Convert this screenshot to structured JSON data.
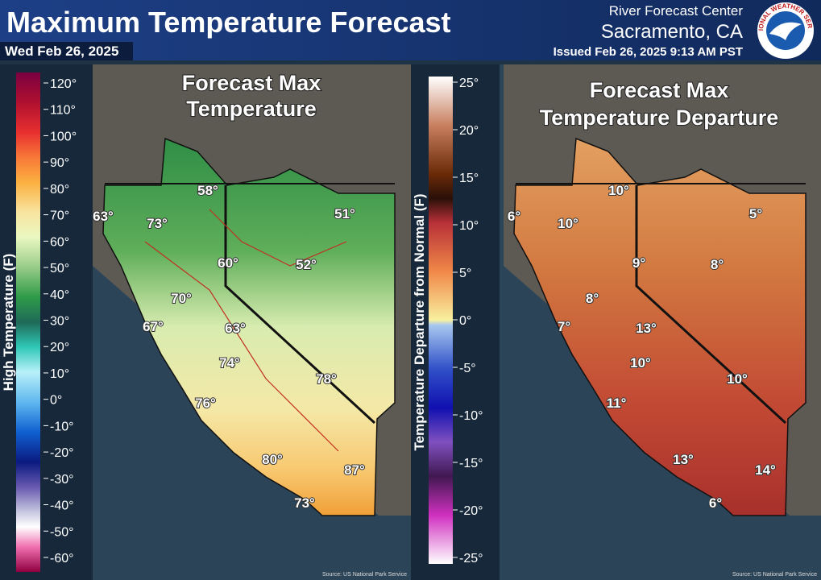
{
  "header": {
    "title": "Maximum Temperature Forecast",
    "date": "Wed Feb 26, 2025",
    "office": "River Forecast Center",
    "location": "Sacramento, CA",
    "issued": "Issued Feb 26, 2025 9:13 AM PST",
    "logo": "NATIONAL WEATHER SERVICE"
  },
  "left_panel": {
    "title_lines": [
      "Forecast Max",
      "Temperature"
    ],
    "legend_title": "High Temperature (F)",
    "legend_ticks": [
      "120°",
      "110°",
      "100°",
      "90°",
      "80°",
      "70°",
      "60°",
      "50°",
      "40°",
      "30°",
      "20°",
      "10°",
      "0°",
      "-10°",
      "-20°",
      "-30°",
      "-40°",
      "-50°",
      "-60°"
    ],
    "labels": [
      "58°",
      "63°",
      "73°",
      "51°",
      "60°",
      "52°",
      "70°",
      "67°",
      "63°",
      "74°",
      "78°",
      "76°",
      "80°",
      "87°",
      "73°"
    ],
    "source": "Source: US National Park Service"
  },
  "right_panel": {
    "title_lines": [
      "Forecast Max",
      "Temperature Departure"
    ],
    "legend_title": "Temperature Departure from Normal (F)",
    "legend_ticks": [
      "25°",
      "20°",
      "15°",
      "10°",
      "5°",
      "0°",
      "-5°",
      "-10°",
      "-15°",
      "-20°",
      "-25°"
    ],
    "labels": [
      "10°",
      "6°",
      "10°",
      "5°",
      "9°",
      "8°",
      "8°",
      "7°",
      "13°",
      "10°",
      "10°",
      "11°",
      "13°",
      "14°",
      "6°"
    ],
    "source": "Source: US National Park Service"
  }
}
